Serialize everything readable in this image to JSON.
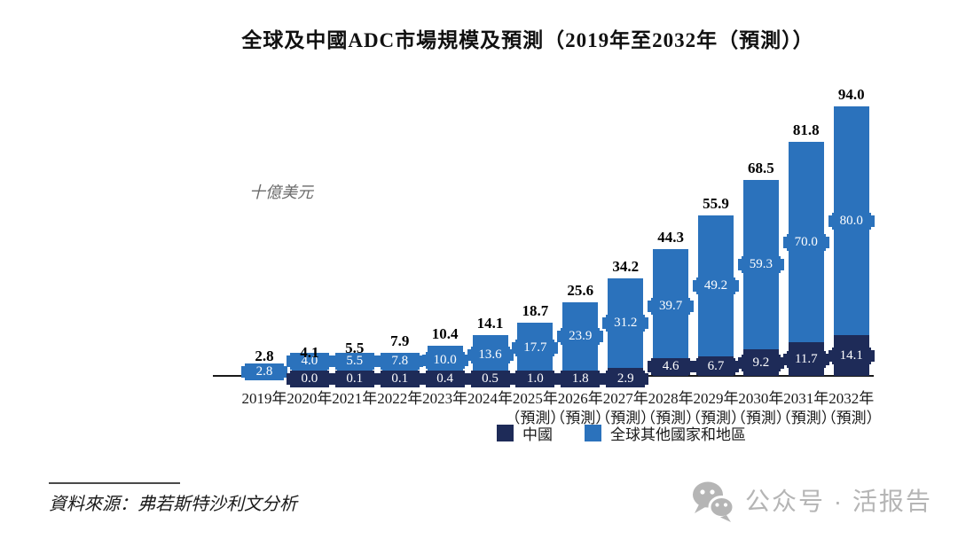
{
  "title": "全球及中國ADC市場規模及預測（2019年至2032年（預測））",
  "y_axis_unit": "十億美元",
  "legend": [
    {
      "label": "中國",
      "color": "#1E2B58"
    },
    {
      "label": "全球其他國家和地區",
      "color": "#2B72BC"
    }
  ],
  "source": "資料來源：弗若斯特沙利文分析",
  "watermark": {
    "icon": "wechat-icon",
    "text": "公众号 · 活报告",
    "color": "#b5b5b5"
  },
  "chart_data": {
    "type": "bar",
    "stacked": true,
    "title": "全球及中國ADC市場規模及預測（2019年至2032年（預測））",
    "ylabel": "十億美元",
    "legend_position": "bottom",
    "grid": false,
    "categories": [
      "2019年",
      "2020年",
      "2021年",
      "2022年",
      "2023年",
      "2024年",
      "2025年",
      "2026年",
      "2027年",
      "2028年",
      "2029年",
      "2030年",
      "2031年",
      "2032年"
    ],
    "category_sublabels": [
      "",
      "",
      "",
      "",
      "",
      "",
      "（預測）",
      "（預測）",
      "（預測）",
      "（預測）",
      "（預測）",
      "（預測）",
      "（預測）",
      "（預測）"
    ],
    "series": [
      {
        "name": "中國",
        "color": "#1E2B58",
        "values": [
          0.0,
          0.0,
          0.1,
          0.1,
          0.4,
          0.5,
          1.0,
          1.8,
          2.9,
          4.6,
          6.7,
          9.2,
          11.7,
          14.1
        ],
        "labels": [
          "",
          "0.0",
          "0.1",
          "0.1",
          "0.4",
          "0.5",
          "1.0",
          "1.8",
          "2.9",
          "4.6",
          "6.7",
          "9.2",
          "11.7",
          "14.1"
        ]
      },
      {
        "name": "全球其他國家和地區",
        "color": "#2B72BC",
        "values": [
          2.8,
          4.0,
          5.5,
          7.8,
          10.0,
          13.6,
          17.7,
          23.9,
          31.2,
          39.7,
          49.2,
          59.3,
          70.0,
          80.0
        ],
        "labels": [
          "2.8",
          "4.0",
          "5.5",
          "7.8",
          "10.0",
          "13.6",
          "17.7",
          "23.9",
          "31.2",
          "39.7",
          "49.2",
          "59.3",
          "70.0",
          "80.0"
        ]
      }
    ],
    "totals": [
      "2.8",
      "4.1",
      "5.5",
      "7.9",
      "10.4",
      "14.1",
      "18.7",
      "25.6",
      "34.2",
      "44.3",
      "55.9",
      "68.5",
      "81.8",
      "94.0"
    ]
  }
}
